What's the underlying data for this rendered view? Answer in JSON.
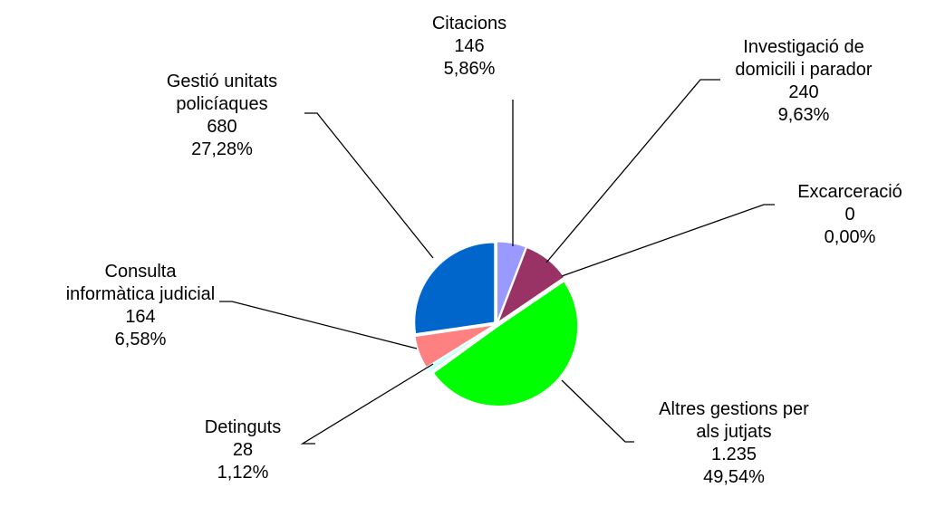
{
  "chart_data": {
    "type": "pie",
    "categories": [
      "Citacions",
      "Investigació de domicili i parador",
      "Excarceració",
      "Altres gestions per als jutjats",
      "Detinguts",
      "Consulta informàtica judicial",
      "Gestió unitats policíaques"
    ],
    "values": [
      146,
      240,
      0,
      1235,
      28,
      164,
      680
    ],
    "value_labels": [
      "146",
      "240",
      "0",
      "1.235",
      "28",
      "164",
      "680"
    ],
    "percentages": [
      5.86,
      9.63,
      0,
      49.54,
      1.12,
      6.58,
      27.28
    ],
    "percentage_labels": [
      "5,86%",
      "9,63%",
      "0,00%",
      "49,54%",
      "1,12%",
      "6,58%",
      "27,28%"
    ],
    "colors": [
      "#9999ff",
      "#993366",
      "#ffffcc",
      "#00ff00",
      "#ccffff",
      "#ff8080",
      "#0066cc"
    ]
  }
}
